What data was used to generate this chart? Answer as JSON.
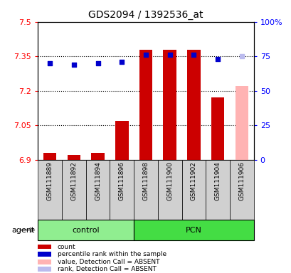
{
  "title": "GDS2094 / 1392536_at",
  "samples": [
    "GSM111889",
    "GSM111892",
    "GSM111894",
    "GSM111896",
    "GSM111898",
    "GSM111900",
    "GSM111902",
    "GSM111904",
    "GSM111906"
  ],
  "bar_values": [
    6.93,
    6.92,
    6.93,
    7.07,
    7.38,
    7.38,
    7.38,
    7.17,
    7.22
  ],
  "bar_colors": [
    "#cc0000",
    "#cc0000",
    "#cc0000",
    "#cc0000",
    "#cc0000",
    "#cc0000",
    "#cc0000",
    "#cc0000",
    "#ffb3b3"
  ],
  "dot_right_values": [
    70,
    69,
    70,
    71,
    76,
    76,
    76,
    73,
    75
  ],
  "dot_colors": [
    "#0000cc",
    "#0000cc",
    "#0000cc",
    "#0000cc",
    "#0000cc",
    "#0000cc",
    "#0000cc",
    "#0000cc",
    "#bbbbee"
  ],
  "ylim_left": [
    6.9,
    7.5
  ],
  "ylim_right": [
    0,
    100
  ],
  "yticks_left": [
    6.9,
    7.05,
    7.2,
    7.35,
    7.5
  ],
  "yticks_right": [
    0,
    25,
    50,
    75,
    100
  ],
  "ytick_labels_left": [
    "6.9",
    "7.05",
    "7.2",
    "7.35",
    "7.5"
  ],
  "ytick_labels_right": [
    "0",
    "25",
    "50",
    "75",
    "100%"
  ],
  "hlines": [
    7.05,
    7.2,
    7.35
  ],
  "bar_bottom": 6.9,
  "control_indices": [
    0,
    1,
    2,
    3
  ],
  "pcn_indices": [
    4,
    5,
    6,
    7,
    8
  ],
  "control_color": "#90ee90",
  "pcn_color": "#44dd44",
  "gray_col_color": "#d0d0d0",
  "agent_label": "agent",
  "legend_items": [
    {
      "color": "#cc0000",
      "label": "count"
    },
    {
      "color": "#0000cc",
      "label": "percentile rank within the sample"
    },
    {
      "color": "#ffb3b3",
      "label": "value, Detection Call = ABSENT"
    },
    {
      "color": "#bbbbee",
      "label": "rank, Detection Call = ABSENT"
    }
  ]
}
